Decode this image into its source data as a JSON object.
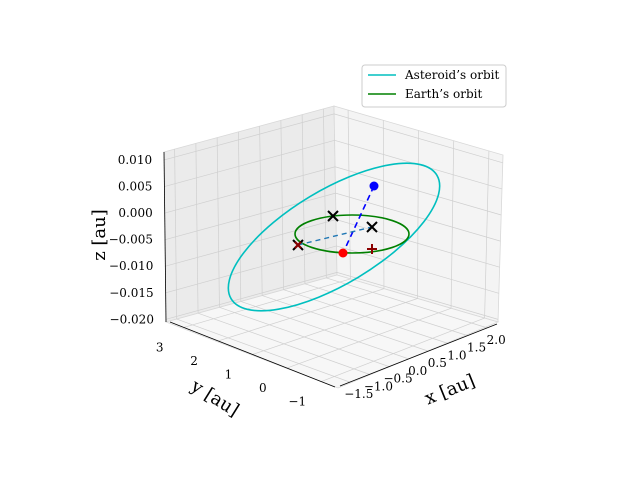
{
  "chart_data": {
    "type": "line",
    "projection": "3d",
    "axes": {
      "x": {
        "label": "x [au]",
        "ticks": [
          "−1.5",
          "−1.0",
          "−0.5",
          "0.0",
          "0.5",
          "1.0",
          "1.5",
          "2.0"
        ],
        "range": [
          -1.75,
          2.25
        ]
      },
      "y": {
        "label": "y [au]",
        "ticks": [
          "−1",
          "0",
          "1",
          "2",
          "3"
        ],
        "range": [
          -1.4,
          3.4
        ]
      },
      "z": {
        "label": "z [au]",
        "ticks": [
          "0.010",
          "0.005",
          "0.000",
          "−0.005",
          "−0.010",
          "−0.015",
          "−0.020"
        ],
        "range": [
          -0.0205,
          0.0115
        ]
      }
    },
    "grid": true,
    "legend": {
      "position": "top-right",
      "entries": [
        {
          "label": "Asteroid’s orbit",
          "color": "#00bfbf"
        },
        {
          "label": "Earth’s orbit",
          "color": "#008000"
        }
      ]
    },
    "series": [
      {
        "name": "Asteroid’s orbit",
        "color": "#00bfbf"
      },
      {
        "name": "Earth’s orbit",
        "color": "#008000"
      }
    ],
    "markers": [
      {
        "symbol": "circle",
        "color": "#0000ff",
        "description": "asteroid position"
      },
      {
        "symbol": "circle",
        "color": "#ff0000",
        "description": "Earth position"
      },
      {
        "symbol": "x",
        "color": "#000000"
      },
      {
        "symbol": "x",
        "color": "#000000"
      },
      {
        "symbol": "x",
        "color": "#000000"
      },
      {
        "symbol": "x",
        "color": "#8b0000"
      },
      {
        "symbol": "plus",
        "color": "#8b0000"
      }
    ],
    "lines": [
      {
        "style": "dashed",
        "color": "#0000ff",
        "description": "asteroid to Earth"
      },
      {
        "style": "dashed",
        "color": "#1f77b4",
        "description": "projection line"
      }
    ]
  }
}
